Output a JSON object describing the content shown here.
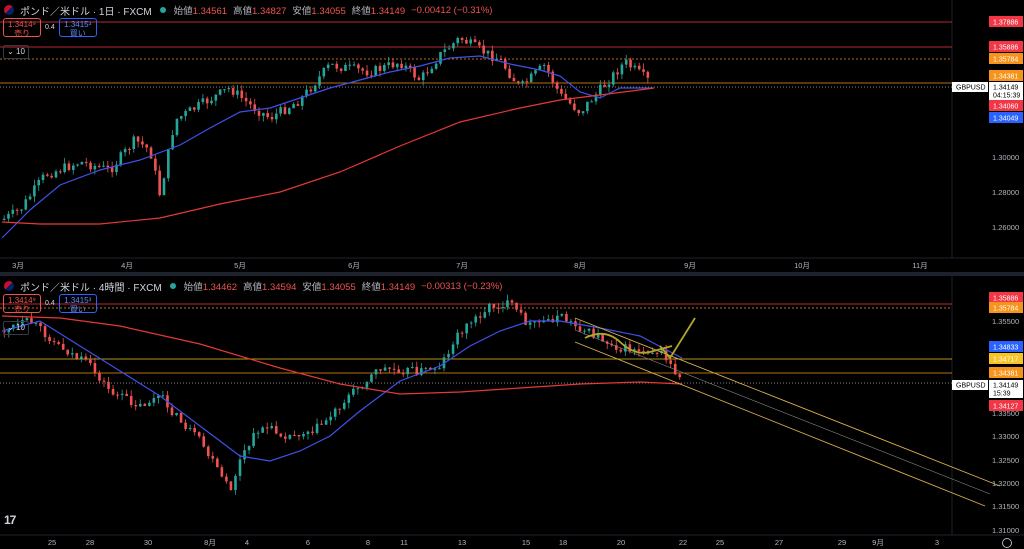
{
  "top": {
    "title": "ポンド／米ドル · 1日 · FXCM",
    "ohlc": [
      {
        "label": "始値",
        "value": "1.34561"
      },
      {
        "label": "高値",
        "value": "1.34827"
      },
      {
        "label": "安値",
        "value": "1.34055"
      },
      {
        "label": "終値",
        "value": "1.34149"
      },
      {
        "label": "",
        "value": "−0.00412 (−0.31%)"
      }
    ],
    "sell_price": "1.3414⁹",
    "sell_label": "売り",
    "buy_price": "1.3415³",
    "buy_label": "買い",
    "spread": "0.4",
    "collapse_count": "10",
    "symbol_tag": "GBPUSD",
    "current_price": "1.34149",
    "countdown": "04:15:39",
    "y_ticks": [
      "1.30000",
      "1.28000",
      "1.26000"
    ],
    "price_tags": [
      {
        "value": "1.37886",
        "color": "#f23645"
      },
      {
        "value": "1.35886",
        "color": "#f23645"
      },
      {
        "value": "1.35784",
        "color": "#f7931a"
      },
      {
        "value": "1.34381",
        "color": "#f7931a"
      },
      {
        "value": "1.34060",
        "color": "#f23645"
      },
      {
        "value": "1.34049",
        "color": "#2962ff"
      }
    ],
    "x_ticks": [
      "3月",
      "4月",
      "5月",
      "6月",
      "7月",
      "8月",
      "9月",
      "10月",
      "11月"
    ]
  },
  "bottom": {
    "title": "ポンド／米ドル · 4時間 · FXCM",
    "ohlc": [
      {
        "label": "始値",
        "value": "1.34462"
      },
      {
        "label": "高値",
        "value": "1.34594"
      },
      {
        "label": "安値",
        "value": "1.34055"
      },
      {
        "label": "終値",
        "value": "1.34149"
      },
      {
        "label": "",
        "value": "−0.00313 (−0.23%)"
      }
    ],
    "sell_price": "1.3414⁹",
    "sell_label": "売り",
    "buy_price": "1.3415³",
    "buy_label": "買い",
    "spread": "0.4",
    "collapse_count": "10",
    "symbol_tag": "GBPUSD",
    "current_price": "1.34149",
    "countdown": "15:39",
    "y_ticks": [
      "1.35500",
      "1.34500",
      "1.33500",
      "1.33000",
      "1.32500",
      "1.32000",
      "1.31500",
      "1.31000"
    ],
    "price_tags": [
      {
        "value": "1.35886",
        "color": "#f23645"
      },
      {
        "value": "1.35784",
        "color": "#f7931a"
      },
      {
        "value": "1.34833",
        "color": "#2962ff"
      },
      {
        "value": "1.34717",
        "color": "#f7c325"
      },
      {
        "value": "1.34381",
        "color": "#f7931a"
      },
      {
        "value": "1.34127",
        "color": "#f23645"
      }
    ],
    "x_ticks": [
      "25",
      "28",
      "30",
      "8月",
      "4",
      "6",
      "8",
      "11",
      "13",
      "15",
      "18",
      "20",
      "22",
      "25",
      "27",
      "29",
      "9月",
      "3"
    ]
  },
  "colors": {
    "up": "#26a69a",
    "down": "#ef5350",
    "ma_fast": "#3f51e8",
    "ma_slow": "#e53935",
    "hline_red": "#f23645",
    "hline_orange": "#f7931a",
    "hline_yellow": "#f7c325",
    "channel": "#d4b24c"
  }
}
